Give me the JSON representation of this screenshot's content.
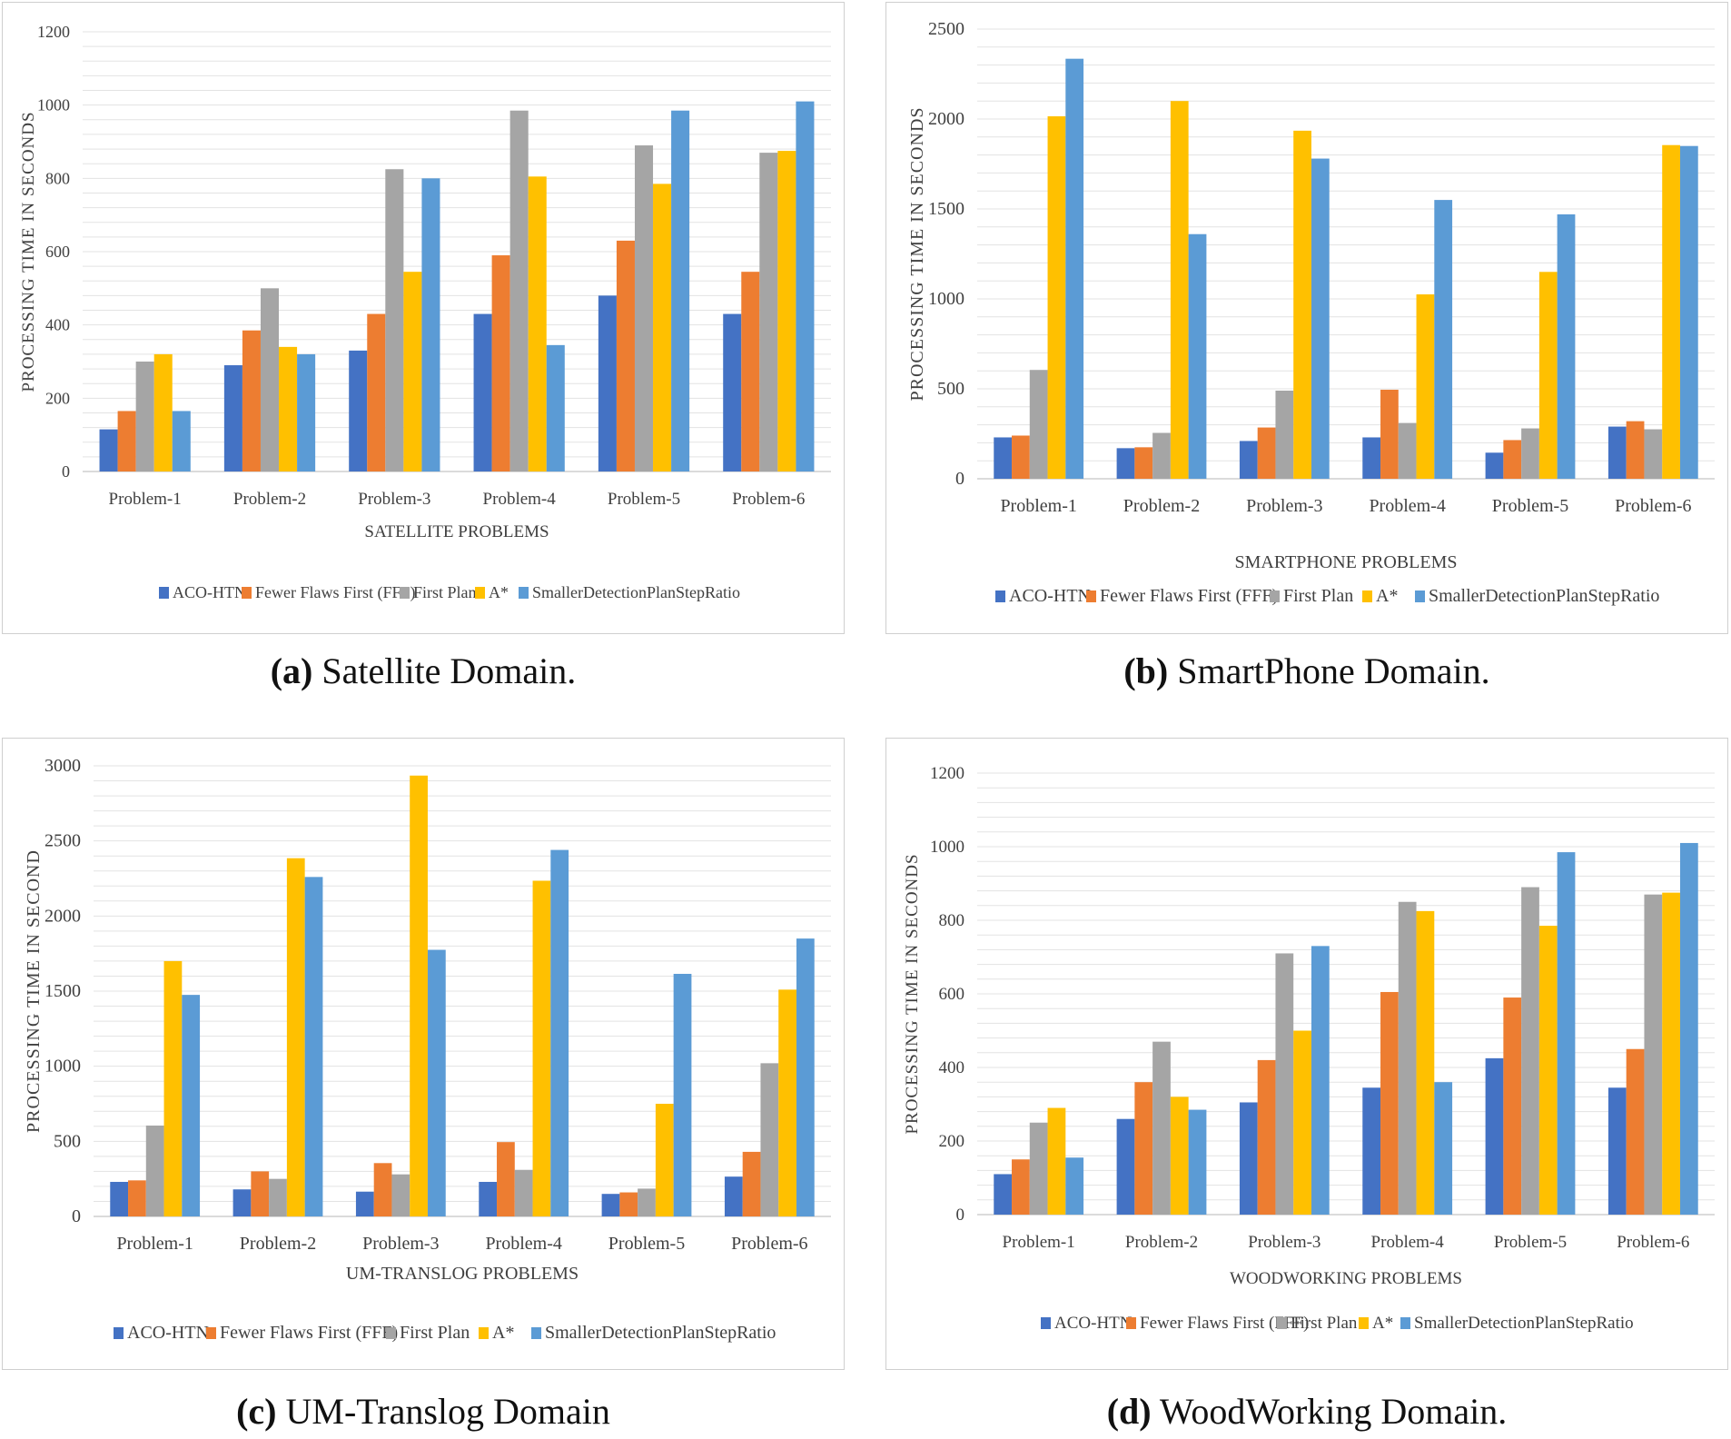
{
  "series_colors": [
    "#4472C4",
    "#ED7D31",
    "#A5A5A5",
    "#FFC000",
    "#5B9BD5"
  ],
  "chart_data": [
    {
      "id": "a",
      "type": "bar",
      "caption_label": "(a)",
      "caption_text": "Satellite Domain.",
      "xlabel": "SATELLITE PROBLEMS",
      "ylabel": "PROCESSING TIME IN SECONDS",
      "ylim": [
        0,
        1200
      ],
      "yticks": [
        0,
        200,
        400,
        600,
        800,
        1000,
        1200
      ],
      "grid_step": 40,
      "categories": [
        "Problem-1",
        "Problem-2",
        "Problem-3",
        "Problem-4",
        "Problem-5",
        "Problem-6"
      ],
      "series": [
        {
          "name": "ACO-HTN",
          "values": [
            115,
            290,
            330,
            430,
            480,
            430
          ]
        },
        {
          "name": "Fewer Flaws First (FFF)",
          "values": [
            165,
            385,
            430,
            590,
            630,
            545
          ]
        },
        {
          "name": "First Plan",
          "values": [
            300,
            500,
            825,
            985,
            890,
            870
          ]
        },
        {
          "name": "A*",
          "values": [
            320,
            340,
            545,
            805,
            785,
            875
          ]
        },
        {
          "name": "SmallerDetectionPlanStepRatio",
          "values": [
            165,
            320,
            800,
            345,
            985,
            1010
          ]
        }
      ]
    },
    {
      "id": "b",
      "type": "bar",
      "caption_label": "(b)",
      "caption_text": "SmartPhone Domain.",
      "xlabel": "SMARTPHONE PROBLEMS",
      "ylabel": "PROCESSING TIME IN SECONDS",
      "ylim": [
        0,
        2500
      ],
      "yticks": [
        0,
        500,
        1000,
        1500,
        2000,
        2500
      ],
      "grid_step": 100,
      "categories": [
        "Problem-1",
        "Problem-2",
        "Problem-3",
        "Problem-4",
        "Problem-5",
        "Problem-6"
      ],
      "series": [
        {
          "name": "ACO-HTN",
          "values": [
            230,
            170,
            210,
            230,
            145,
            290
          ]
        },
        {
          "name": "Fewer Flaws First (FFF)",
          "values": [
            240,
            175,
            285,
            495,
            215,
            320
          ]
        },
        {
          "name": "First Plan",
          "values": [
            605,
            255,
            490,
            310,
            280,
            275
          ]
        },
        {
          "name": "A*",
          "values": [
            2015,
            2100,
            1935,
            1025,
            1150,
            1855
          ]
        },
        {
          "name": "SmallerDetectionPlanStepRatio",
          "values": [
            2335,
            1360,
            1780,
            1550,
            1470,
            1850
          ]
        }
      ]
    },
    {
      "id": "c",
      "type": "bar",
      "caption_label": "(c)",
      "caption_text": "UM-Translog Domain",
      "xlabel": "UM-TRANSLOG PROBLEMS",
      "ylabel": "PROCESSING TIME IN SECOND",
      "ylim": [
        0,
        3000
      ],
      "yticks": [
        0,
        500,
        1000,
        1500,
        2000,
        2500,
        3000
      ],
      "grid_step": 100,
      "categories": [
        "Problem-1",
        "Problem-2",
        "Problem-3",
        "Problem-4",
        "Problem-5",
        "Problem-6"
      ],
      "series": [
        {
          "name": "ACO-HTN",
          "values": [
            230,
            180,
            165,
            230,
            150,
            265
          ]
        },
        {
          "name": "Fewer Flaws First (FFF)",
          "values": [
            240,
            300,
            355,
            495,
            160,
            430
          ]
        },
        {
          "name": "First Plan",
          "values": [
            605,
            250,
            280,
            310,
            185,
            1020
          ]
        },
        {
          "name": "A*",
          "values": [
            1700,
            2385,
            2935,
            2235,
            750,
            1510
          ]
        },
        {
          "name": "SmallerDetectionPlanStepRatio",
          "values": [
            1475,
            2260,
            1775,
            2440,
            1615,
            1850
          ]
        }
      ]
    },
    {
      "id": "d",
      "type": "bar",
      "caption_label": "(d)",
      "caption_text": "WoodWorking Domain.",
      "xlabel": "WOODWORKING PROBLEMS",
      "ylabel": "PROCESSING TIME IN SECONDS",
      "ylim": [
        0,
        1200
      ],
      "yticks": [
        0,
        200,
        400,
        600,
        800,
        1000,
        1200
      ],
      "grid_step": 40,
      "categories": [
        "Problem-1",
        "Problem-2",
        "Problem-3",
        "Problem-4",
        "Problem-5",
        "Problem-6"
      ],
      "series": [
        {
          "name": "ACO-HTN",
          "values": [
            110,
            260,
            305,
            345,
            425,
            345
          ]
        },
        {
          "name": "Fewer Flaws First (FFF)",
          "values": [
            150,
            360,
            420,
            605,
            590,
            450
          ]
        },
        {
          "name": "First Plan",
          "values": [
            250,
            470,
            710,
            850,
            890,
            870
          ]
        },
        {
          "name": "A*",
          "values": [
            290,
            320,
            500,
            825,
            785,
            875
          ]
        },
        {
          "name": "SmallerDetectionPlanStepRatio",
          "values": [
            155,
            285,
            730,
            360,
            985,
            1010
          ]
        }
      ]
    }
  ]
}
